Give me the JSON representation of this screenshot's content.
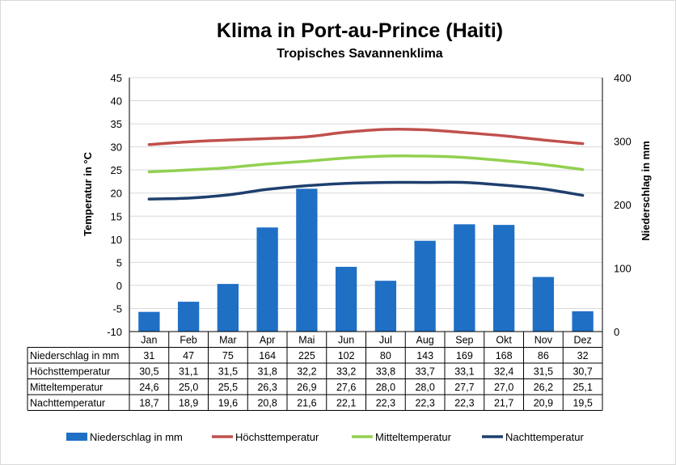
{
  "chart_data": {
    "type": "bar",
    "title": "Klima in Port-au-Prince (Haiti)",
    "subtitle": "Tropisches Savannenklima",
    "ylabel_left": "Temperatur in °C",
    "ylabel_right": "Niederschlag in mm",
    "ylim_left": [
      -10,
      45
    ],
    "yticks_left": [
      -10,
      -5,
      0,
      5,
      10,
      15,
      20,
      25,
      30,
      35,
      40,
      45
    ],
    "ylim_right": [
      0,
      400
    ],
    "yticks_right": [
      0,
      100,
      200,
      300,
      400
    ],
    "categories": [
      "Jan",
      "Feb",
      "Mar",
      "Apr",
      "Mai",
      "Jun",
      "Jul",
      "Aug",
      "Sep",
      "Okt",
      "Nov",
      "Dez"
    ],
    "grid": true,
    "legend_position": "bottom",
    "series": [
      {
        "name": "Niederschlag in mm",
        "type": "bar",
        "axis": "right",
        "color": "#1f6fc5",
        "values": [
          31,
          47,
          75,
          164,
          225,
          102,
          80,
          143,
          169,
          168,
          86,
          32
        ],
        "labels": [
          "31",
          "47",
          "75",
          "164",
          "225",
          "102",
          "80",
          "143",
          "169",
          "168",
          "86",
          "32"
        ]
      },
      {
        "name": "Höchsttemperatur",
        "type": "line",
        "axis": "left",
        "color": "#c0504d",
        "values": [
          30.5,
          31.1,
          31.5,
          31.8,
          32.2,
          33.2,
          33.8,
          33.7,
          33.1,
          32.4,
          31.5,
          30.7
        ],
        "labels": [
          "30,5",
          "31,1",
          "31,5",
          "31,8",
          "32,2",
          "33,2",
          "33,8",
          "33,7",
          "33,1",
          "32,4",
          "31,5",
          "30,7"
        ]
      },
      {
        "name": "Mitteltemperatur",
        "type": "line",
        "axis": "left",
        "color": "#92d050",
        "values": [
          24.6,
          25.0,
          25.5,
          26.3,
          26.9,
          27.6,
          28.0,
          28.0,
          27.7,
          27.0,
          26.2,
          25.1
        ],
        "labels": [
          "24,6",
          "25,0",
          "25,5",
          "26,3",
          "26,9",
          "27,6",
          "28,0",
          "28,0",
          "27,7",
          "27,0",
          "26,2",
          "25,1"
        ]
      },
      {
        "name": "Nachttemperatur",
        "type": "line",
        "axis": "left",
        "color": "#1f3f6e",
        "values": [
          18.7,
          18.9,
          19.6,
          20.8,
          21.6,
          22.1,
          22.3,
          22.3,
          22.3,
          21.7,
          20.9,
          19.5
        ],
        "labels": [
          "18,7",
          "18,9",
          "19,6",
          "20,8",
          "21,6",
          "22,1",
          "22,3",
          "22,3",
          "22,3",
          "21,7",
          "20,9",
          "19,5"
        ]
      }
    ]
  }
}
